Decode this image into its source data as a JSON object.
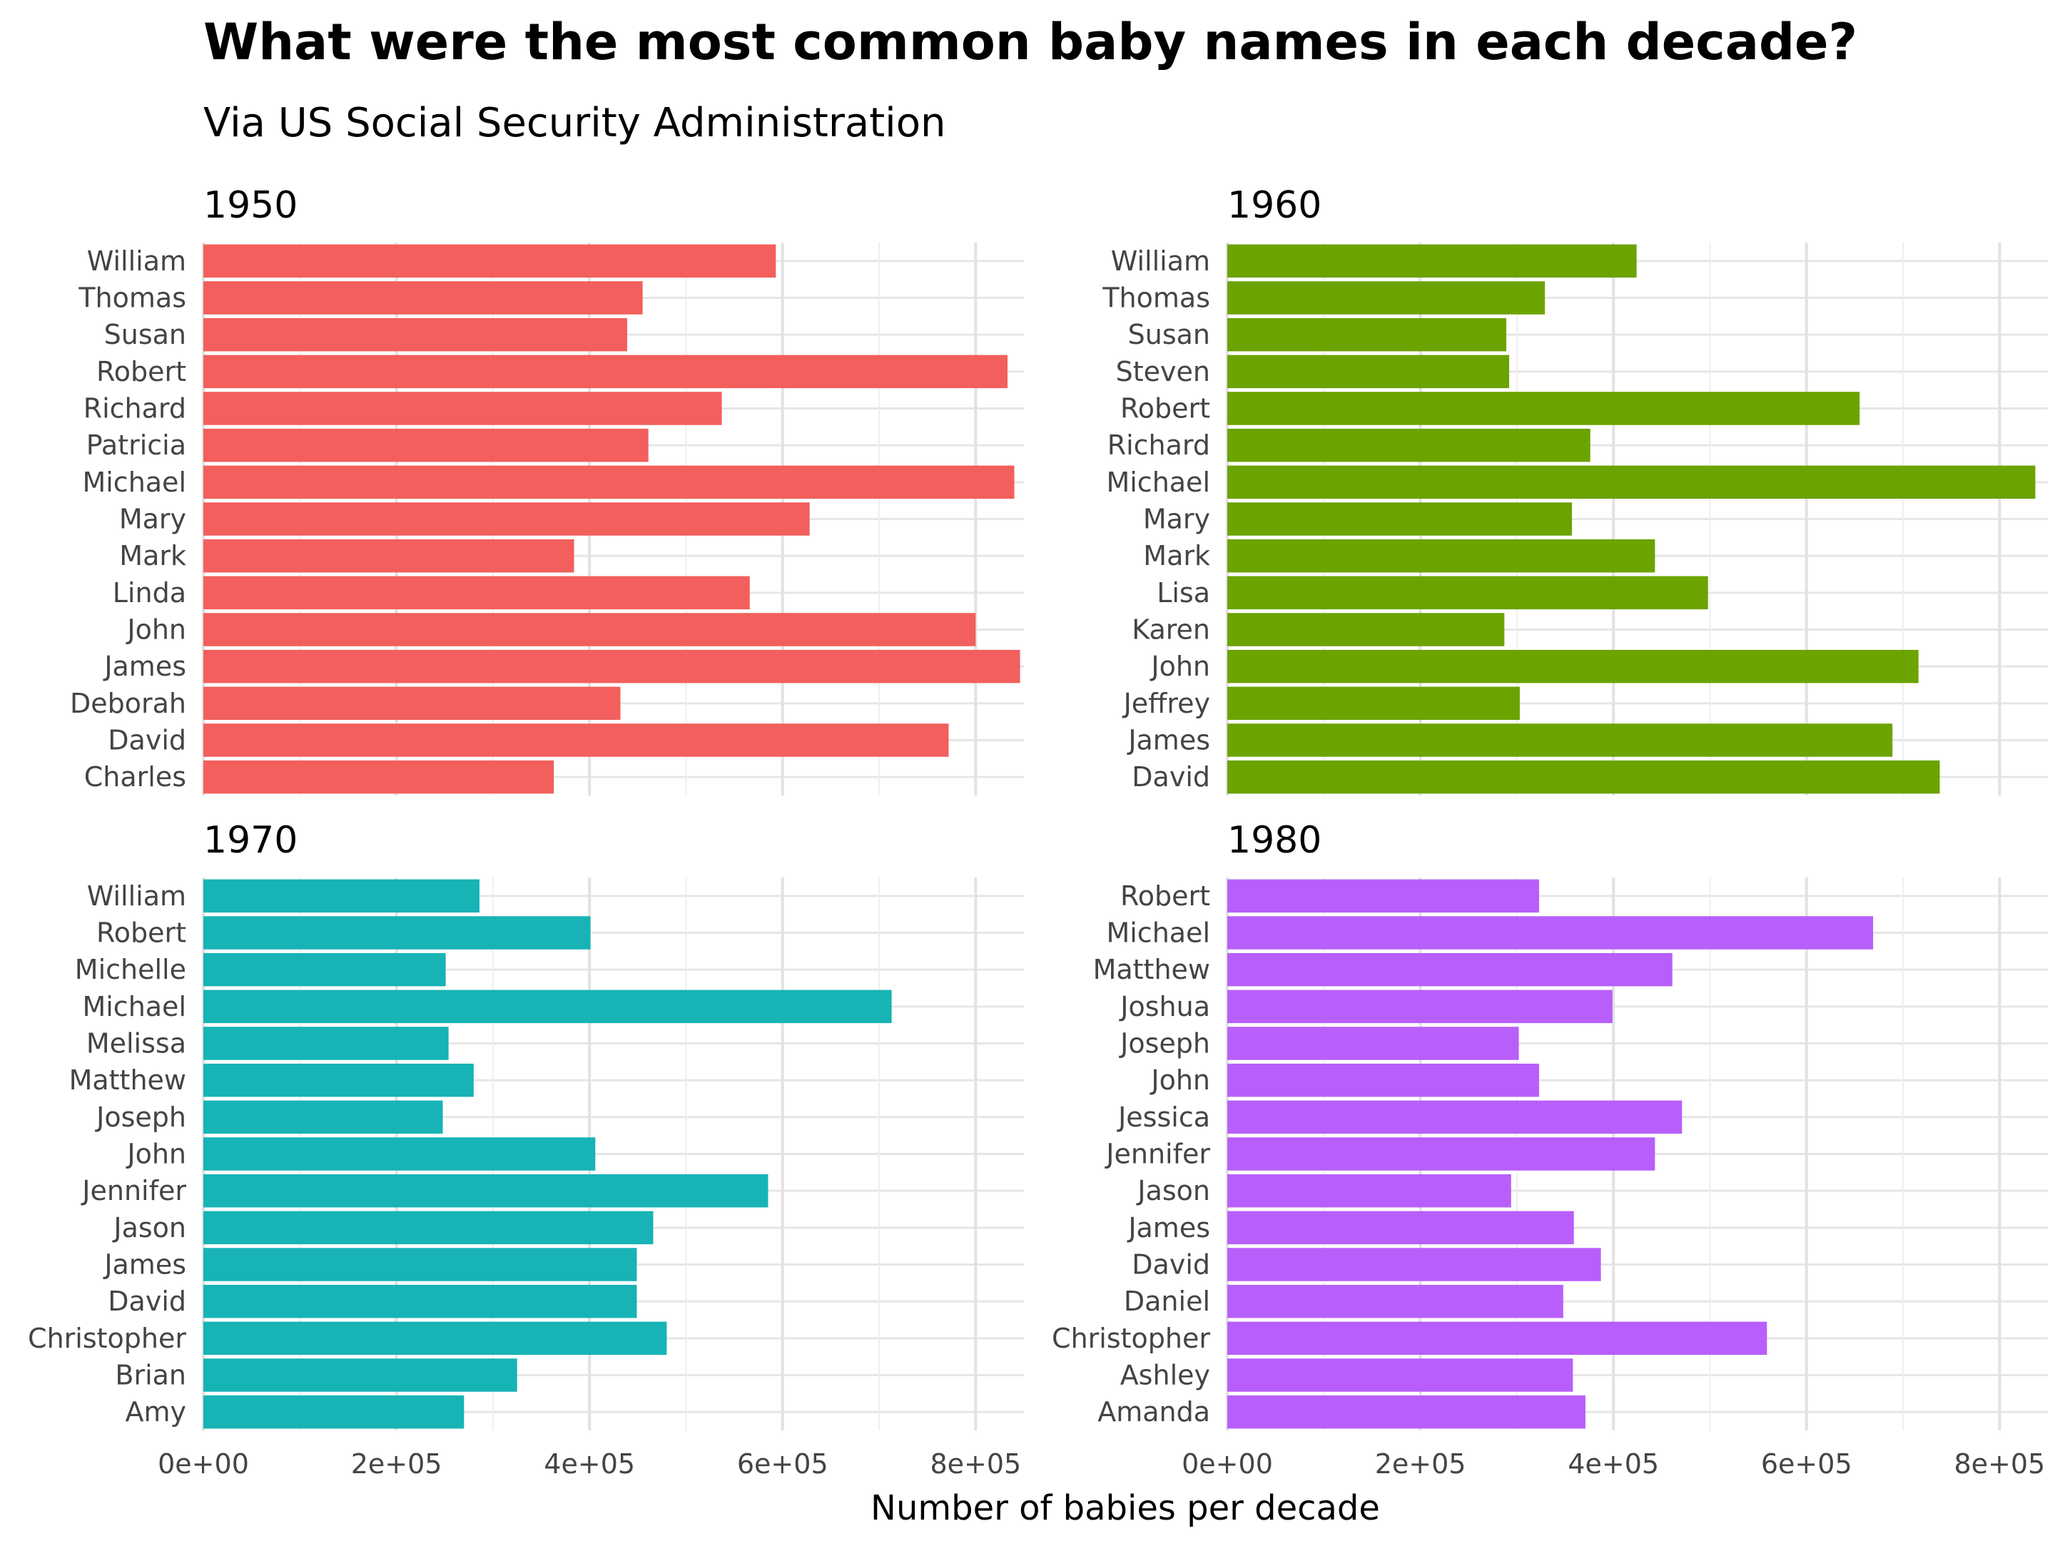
{
  "title": "What were the most common baby names in each decade?",
  "subtitle": "Via US Social Security Administration",
  "chart_data": {
    "type": "bar",
    "orientation": "horizontal",
    "layout": "facet-2x2",
    "xlabel": "Number of babies per decade",
    "ylabel": "",
    "xlim": [
      0,
      850000
    ],
    "xticks": [
      0,
      200000,
      400000,
      600000,
      800000
    ],
    "xtick_labels": [
      "0e+00",
      "2e+05",
      "4e+05",
      "6e+05",
      "8e+05"
    ],
    "grid": true,
    "legend": "none",
    "panels": [
      {
        "name": "1950",
        "color": "#F25F5C",
        "categories": [
          "William",
          "Thomas",
          "Susan",
          "Robert",
          "Richard",
          "Patricia",
          "Michael",
          "Mary",
          "Mark",
          "Linda",
          "John",
          "James",
          "Deborah",
          "David",
          "Charles"
        ],
        "values": [
          593000,
          455000,
          439000,
          833000,
          537000,
          461000,
          840000,
          628000,
          384000,
          566000,
          800000,
          846000,
          432000,
          772000,
          363000
        ]
      },
      {
        "name": "1960",
        "color": "#6BA300",
        "categories": [
          "William",
          "Thomas",
          "Susan",
          "Steven",
          "Robert",
          "Richard",
          "Michael",
          "Mary",
          "Mark",
          "Lisa",
          "Karen",
          "John",
          "Jeffrey",
          "James",
          "David"
        ],
        "values": [
          424000,
          329000,
          289000,
          292000,
          655000,
          376000,
          837000,
          357000,
          443000,
          498000,
          287000,
          716000,
          303000,
          689000,
          738000
        ]
      },
      {
        "name": "1970",
        "color": "#17B3B5",
        "categories": [
          "William",
          "Robert",
          "Michelle",
          "Michael",
          "Melissa",
          "Matthew",
          "Joseph",
          "John",
          "Jennifer",
          "Jason",
          "James",
          "David",
          "Christopher",
          "Brian",
          "Amy"
        ],
        "values": [
          286000,
          401000,
          251000,
          713000,
          254000,
          280000,
          248000,
          406000,
          585000,
          466000,
          449000,
          449000,
          480000,
          325000,
          270000
        ]
      },
      {
        "name": "1980",
        "color": "#B85FFB",
        "categories": [
          "Robert",
          "Michael",
          "Matthew",
          "Joshua",
          "Joseph",
          "John",
          "Jessica",
          "Jennifer",
          "Jason",
          "James",
          "David",
          "Daniel",
          "Christopher",
          "Ashley",
          "Amanda"
        ],
        "values": [
          323000,
          669000,
          461000,
          399000,
          302000,
          323000,
          471000,
          443000,
          294000,
          359000,
          387000,
          348000,
          559000,
          358000,
          371000
        ]
      }
    ]
  }
}
